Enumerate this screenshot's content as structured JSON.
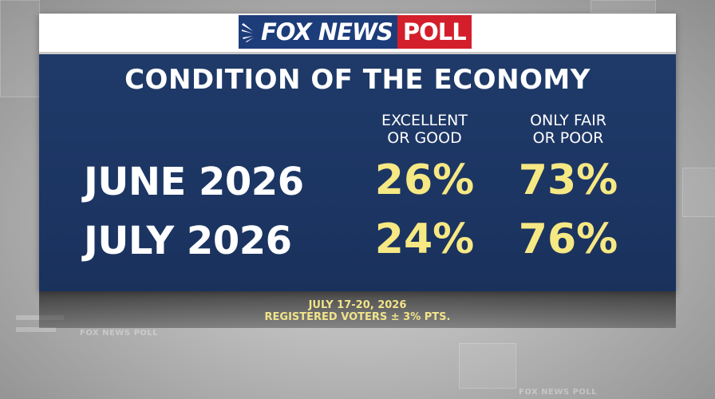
{
  "logo": {
    "fox_news": "FOX NEWS",
    "poll": "POLL"
  },
  "background_watermark": "FOX NEWS POLL",
  "colors": {
    "panel_blue": "#1c3563",
    "value_yellow": "#f6e883",
    "logo_blue": "#1d3c7a",
    "logo_red": "#d31f2b"
  },
  "chart_data": {
    "type": "table",
    "title": "CONDITION OF THE ECONOMY",
    "columns": [
      "EXCELLENT\nOR GOOD",
      "ONLY FAIR\nOR POOR"
    ],
    "rows": [
      {
        "label": "JUNE 2026",
        "values": [
          "26%",
          "73%"
        ]
      },
      {
        "label": "JULY 2026",
        "values": [
          "24%",
          "76%"
        ]
      }
    ]
  },
  "footer": {
    "dates": "JULY 17-20, 2026",
    "sample": "REGISTERED VOTERS ± 3% PTS."
  }
}
